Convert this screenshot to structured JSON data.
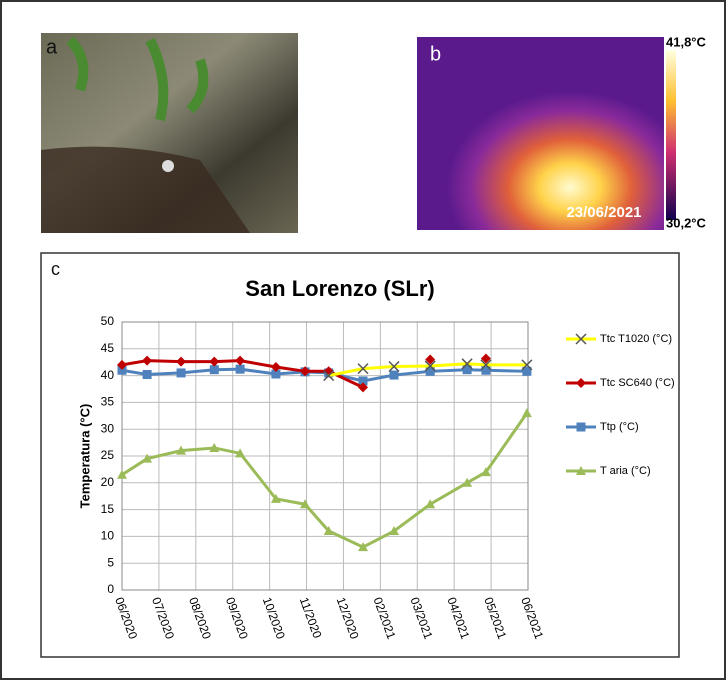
{
  "panels": {
    "a": {
      "label": "a"
    },
    "b": {
      "label": "b",
      "max_label": "41,8°C",
      "min_label": "30,2°C",
      "date": "23/06/2021"
    },
    "c": {
      "label": "c"
    }
  },
  "chart_data": {
    "type": "line",
    "title": "San Lorenzo (SLr)",
    "y_label": "Temperatura (°C)",
    "xlim": [
      0,
      11
    ],
    "xticks": [
      {
        "value": 0,
        "label": "06/2020"
      },
      {
        "value": 1,
        "label": "07/2020"
      },
      {
        "value": 2,
        "label": "08/2020"
      },
      {
        "value": 3,
        "label": "09/2020"
      },
      {
        "value": 4,
        "label": "10/2020"
      },
      {
        "value": 5,
        "label": "11/2020"
      },
      {
        "value": 6,
        "label": "12/2020"
      },
      {
        "value": 7,
        "label": "02/2021"
      },
      {
        "value": 8,
        "label": "03/2021"
      },
      {
        "value": 9,
        "label": "04/2021"
      },
      {
        "value": 10,
        "label": "05/2021"
      },
      {
        "value": 11,
        "label": "06/2021"
      }
    ],
    "ylim": [
      0,
      50
    ],
    "yticks": [
      0,
      5,
      10,
      15,
      20,
      25,
      30,
      35,
      40,
      45,
      50
    ],
    "grid": true,
    "series": [
      {
        "name": "Ttc T1020 (°C)",
        "color": "#ffff00",
        "marker": "x",
        "x": [
          5.6,
          6.53,
          7.37,
          8.35,
          9.35,
          9.86,
          10.97
        ],
        "values": [
          40,
          41.3,
          41.7,
          41.8,
          42.2,
          42,
          42
        ]
      },
      {
        "name": "Ttc SC640 (°C)",
        "color": "#c00000",
        "marker": "diamond",
        "x": [
          0,
          0.68,
          1.6,
          2.5,
          3.2,
          4.17,
          4.96,
          5.6,
          6.53,
          7.37,
          8.35,
          9.35,
          9.86,
          10.97
        ],
        "values": [
          42,
          42.8,
          42.6,
          42.6,
          42.8,
          41.6,
          40.8,
          40.8,
          37.8,
          null,
          43,
          null,
          43.2,
          null
        ]
      },
      {
        "name": "Ttp (°C)",
        "color": "#4f81bd",
        "marker": "square",
        "x": [
          0,
          0.68,
          1.6,
          2.5,
          3.2,
          4.17,
          4.96,
          5.6,
          6.53,
          7.37,
          8.35,
          9.35,
          9.86,
          10.97
        ],
        "values": [
          41,
          40.2,
          40.5,
          41.1,
          41.2,
          40.3,
          40.7,
          40.5,
          39,
          40.1,
          40.8,
          41.1,
          41,
          40.8
        ]
      },
      {
        "name": "T aria (°C)",
        "color": "#9bbb59",
        "marker": "triangle",
        "x": [
          0,
          0.68,
          1.6,
          2.5,
          3.2,
          4.17,
          4.96,
          5.6,
          6.53,
          7.37,
          8.35,
          9.35,
          9.86,
          10.97
        ],
        "values": [
          21.5,
          24.5,
          26,
          26.5,
          25.5,
          17,
          16,
          11,
          8,
          11,
          16,
          20,
          22,
          33
        ]
      }
    ]
  }
}
